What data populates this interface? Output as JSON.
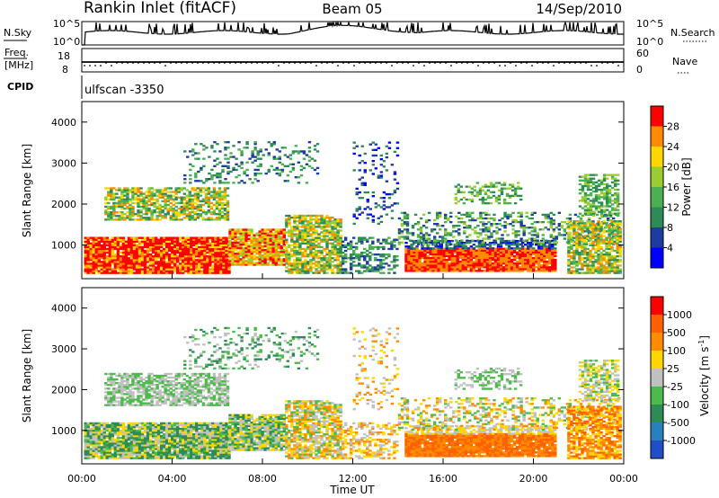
{
  "header": {
    "station": "Rankin Inlet (fitACF)",
    "beam": "Beam 05",
    "date": "14/Sep/2010"
  },
  "noise_panel": {
    "left_label": "N.Sky",
    "right_label": "N.Search",
    "left_ticks": [
      "10^5",
      "10^0"
    ],
    "right_ticks": [
      "10^5",
      "10^0"
    ]
  },
  "freq_panel": {
    "left_label_line1": "Freq.",
    "left_label_line2": "[MHz]",
    "right_label": "Nave",
    "left_ticks": [
      "18",
      "8"
    ],
    "right_ticks": [
      "60",
      "0"
    ]
  },
  "cpid": {
    "label": "CPID",
    "value": "ulfscan -3350"
  },
  "chart_data": [
    {
      "type": "heatmap",
      "title": "Power",
      "ylabel": "Slant Range [km]",
      "xlabel": "",
      "x_ticks": [
        "00:00",
        "04:00",
        "08:00",
        "12:00",
        "16:00",
        "20:00",
        "00:00"
      ],
      "y_ticks": [
        "1000",
        "2000",
        "3000",
        "4000"
      ],
      "ylim": [
        180,
        4500
      ],
      "colorbar": {
        "label": "Power [dB]",
        "ticks": [
          "4",
          "8",
          "12",
          "16",
          "20",
          "24",
          "28"
        ],
        "range": [
          0,
          32
        ],
        "colors": [
          "#0000ff",
          "#1e3ca0",
          "#2e8b57",
          "#4caf50",
          "#9acd32",
          "#ffd700",
          "#ff8c00",
          "#ff0000"
        ]
      }
    },
    {
      "type": "heatmap",
      "title": "Velocity",
      "ylabel": "Slant Range [km]",
      "xlabel": "Time UT",
      "x_ticks": [
        "00:00",
        "04:00",
        "08:00",
        "12:00",
        "16:00",
        "20:00",
        "00:00"
      ],
      "y_ticks": [
        "1000",
        "2000",
        "3000",
        "4000"
      ],
      "ylim": [
        180,
        4500
      ],
      "colorbar": {
        "label": "Velocity [m s",
        "label_sup": "-1",
        "label_end": "]",
        "ticks": [
          "1000",
          "500",
          "100",
          "25",
          "-25",
          "-100",
          "-500",
          "-1000"
        ],
        "colors": [
          "#1f4fc8",
          "#2a7fbf",
          "#2e8b57",
          "#4cbb4c",
          "#c0c0c0",
          "#ffd700",
          "#ff8c00",
          "#ff6000",
          "#ff0000"
        ]
      }
    }
  ]
}
